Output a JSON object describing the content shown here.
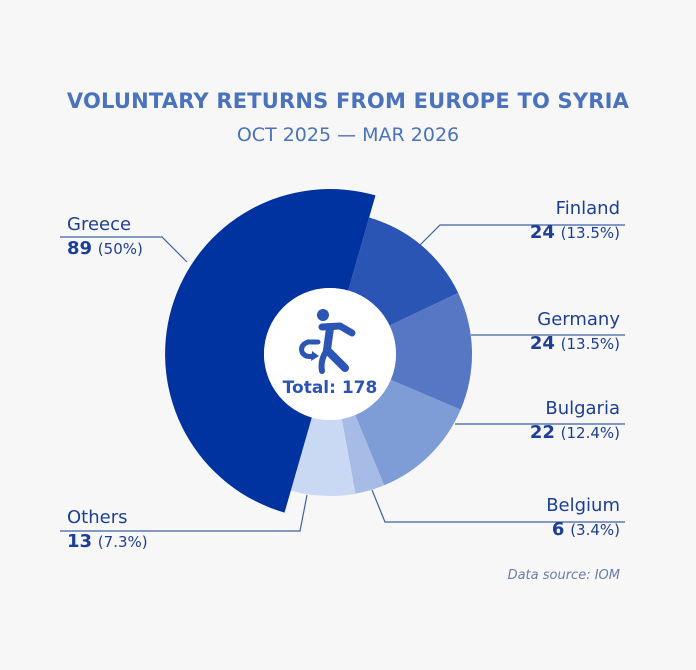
{
  "chart_data": {
    "type": "pie",
    "title": "VOLUNTARY RETURNS FROM EUROPE TO SYRIA",
    "subtitle": "OCT 2025 — MAR 2026",
    "center_label": "Total: 178",
    "center_icon": "person-returning-icon",
    "slices": [
      {
        "label": "Greece",
        "value": 89,
        "percent": "(50%)",
        "color": "#0033a0"
      },
      {
        "label": "Finland",
        "value": 24,
        "percent": "(13.5%)",
        "color": "#2b55b5"
      },
      {
        "label": "Germany",
        "value": 24,
        "percent": "(13.5%)",
        "color": "#5577c4"
      },
      {
        "label": "Bulgaria",
        "value": 22,
        "percent": "(12.4%)",
        "color": "#7e9cd6"
      },
      {
        "label": "Belgium",
        "value": 6,
        "percent": "(3.4%)",
        "color": "#a6bce6"
      },
      {
        "label": "Others",
        "value": 13,
        "percent": "(7.3%)",
        "color": "#c9d8f3"
      }
    ],
    "labels": {
      "greece": "Greece",
      "finland": "Finland",
      "germany": "Germany",
      "bulgaria": "Bulgaria",
      "belgium": "Belgium",
      "others": "Others"
    },
    "source": "Data source: IOM"
  }
}
